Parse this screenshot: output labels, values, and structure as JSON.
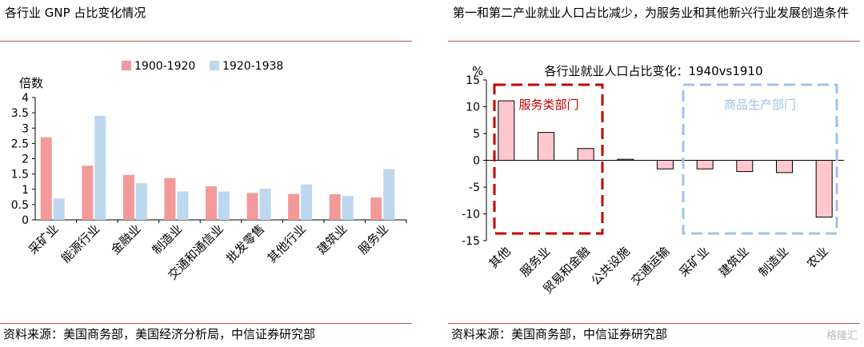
{
  "left_panel": {
    "title": "各行业 GNP 占比变化情况",
    "source": "资料来源：美国商务部，美国经济分析局，中信证券研究部"
  },
  "right_panel": {
    "title": "第一和第二产业就业人口占比减少，为服务业和其他新兴行业发展创造条件",
    "source": "资料来源：美国商务部，中信证券研究部",
    "watermark": "格隆汇"
  },
  "chart_data": [
    {
      "type": "bar",
      "title": "",
      "ylabel": "倍数",
      "xlabel": "",
      "ylim": [
        0,
        4
      ],
      "yticks": [
        "0",
        "0.5",
        "1",
        "1.5",
        "2",
        "2.5",
        "3",
        "3.5",
        "4"
      ],
      "legend_position": "top",
      "categories": [
        "采矿业",
        "能源行业",
        "金融业",
        "制造业",
        "交通和通信业",
        "批发零售",
        "其他行业",
        "建筑业",
        "服务业"
      ],
      "series": [
        {
          "name": "1900-1920",
          "color": "#f4999a",
          "values": [
            2.7,
            1.77,
            1.47,
            1.37,
            1.1,
            0.88,
            0.85,
            0.84,
            0.73
          ]
        },
        {
          "name": "1920-1938",
          "color": "#bdd7ee",
          "values": [
            0.7,
            3.4,
            1.2,
            0.93,
            0.93,
            1.02,
            1.16,
            0.78,
            1.66
          ]
        }
      ]
    },
    {
      "type": "bar",
      "title": "各行业就业人口占比变化：1940vs1910",
      "ylabel": "%",
      "xlabel": "",
      "ylim": [
        -15,
        15
      ],
      "yticks": [
        "-15",
        "-10",
        "-5",
        "0",
        "5",
        "10",
        "15"
      ],
      "categories": [
        "其他",
        "服务业",
        "贸易和金融",
        "公共设施",
        "交通运输",
        "采矿业",
        "建筑业",
        "制造业",
        "农业"
      ],
      "series": [
        {
          "name": "",
          "color": "#ffc7ce",
          "values": [
            11.1,
            5.2,
            2.2,
            0.2,
            -1.6,
            -1.6,
            -2.1,
            -2.3,
            -10.6
          ]
        }
      ],
      "annotations": [
        {
          "text": "服务类部门",
          "color": "#c00000"
        },
        {
          "text": "商品生产部门",
          "color": "#9dc3e6"
        }
      ]
    }
  ]
}
